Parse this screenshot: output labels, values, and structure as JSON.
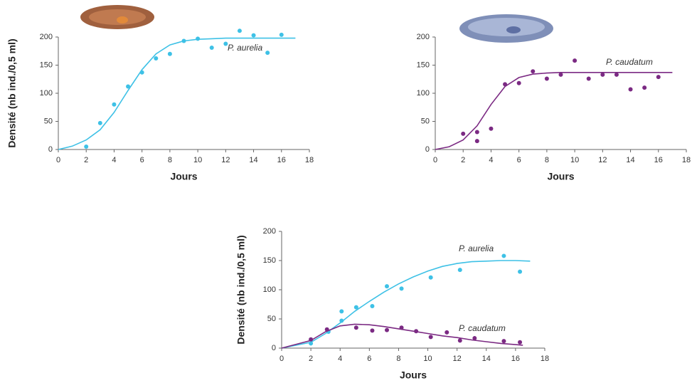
{
  "chart_data": [
    {
      "type": "scatter",
      "xlabel": "Jours",
      "ylabel": "Densité (nb ind./0,5 ml)",
      "xlim": [
        0,
        18
      ],
      "xticks": [
        0,
        2,
        4,
        6,
        8,
        10,
        12,
        14,
        16,
        18
      ],
      "ylim": [
        0,
        200
      ],
      "yticks": [
        0,
        50,
        100,
        150,
        200
      ],
      "series": [
        {
          "name": "P. aurelia",
          "color": "#3ec1e6",
          "x": [
            2,
            3,
            4,
            5,
            6,
            7,
            8,
            9,
            10,
            11,
            12,
            13,
            14,
            15,
            16
          ],
          "values": [
            5,
            47,
            80,
            112,
            137,
            162,
            170,
            193,
            197,
            181,
            188,
            211,
            203,
            172,
            204
          ],
          "fit_x": [
            0,
            1,
            2,
            3,
            4,
            5,
            6,
            7,
            8,
            9,
            10,
            11,
            12,
            13,
            14,
            15,
            16,
            17
          ],
          "fit_values": [
            0,
            6,
            17,
            35,
            66,
            105,
            142,
            170,
            186,
            193,
            196,
            197,
            198,
            198,
            198,
            198,
            198,
            198
          ]
        }
      ]
    },
    {
      "type": "scatter",
      "xlabel": "Jours",
      "xlim": [
        0,
        18
      ],
      "xticks": [
        0,
        2,
        4,
        6,
        8,
        10,
        12,
        14,
        16,
        18
      ],
      "ylim": [
        0,
        200
      ],
      "yticks": [
        0,
        50,
        100,
        150,
        200
      ],
      "series": [
        {
          "name": "P. caudatum",
          "color": "#7b2a83",
          "x": [
            2,
            3,
            3,
            4,
            5,
            6,
            7,
            8,
            9,
            10,
            11,
            12,
            13,
            14,
            15,
            16
          ],
          "values": [
            28,
            15,
            31,
            37,
            116,
            118,
            139,
            126,
            133,
            158,
            126,
            133,
            133,
            107,
            110,
            129
          ],
          "fit_x": [
            0,
            1,
            2,
            3,
            4,
            5,
            6,
            7,
            8,
            9,
            10,
            11,
            12,
            13,
            14,
            15,
            16,
            17
          ],
          "fit_values": [
            0,
            5,
            17,
            42,
            80,
            112,
            128,
            134,
            136,
            137,
            137,
            137,
            137,
            137,
            137,
            137,
            137,
            137
          ]
        }
      ]
    },
    {
      "type": "scatter",
      "xlabel": "Jours",
      "ylabel": "Densité (nb ind./0,5 ml)",
      "xlim": [
        0,
        18
      ],
      "xticks": [
        0,
        2,
        4,
        6,
        8,
        10,
        12,
        14,
        16,
        18
      ],
      "ylim": [
        0,
        200
      ],
      "yticks": [
        0,
        50,
        100,
        150,
        200
      ],
      "series": [
        {
          "name": "P. aurelia",
          "color": "#3ec1e6",
          "x": [
            2,
            3.2,
            4.1,
            4.1,
            5.1,
            6.2,
            7.2,
            8.2,
            10.2,
            12.2,
            15.2,
            16.3
          ],
          "values": [
            8,
            28,
            47,
            63,
            70,
            72,
            106,
            102,
            121,
            134,
            158,
            131
          ],
          "fit_x": [
            0,
            2,
            3,
            4,
            5,
            6,
            7,
            8,
            9,
            10,
            11,
            12,
            13,
            14,
            15,
            16,
            17
          ],
          "fit_values": [
            0,
            10,
            25,
            43,
            63,
            80,
            96,
            110,
            122,
            132,
            140,
            145,
            148,
            149,
            150,
            150,
            149
          ]
        },
        {
          "name": "P. caudatum",
          "color": "#7b2a83",
          "x": [
            2,
            3.1,
            5.1,
            6.2,
            7.2,
            8.2,
            9.2,
            10.2,
            11.3,
            12.2,
            13.2,
            15.2,
            16.3
          ],
          "values": [
            15,
            32,
            35,
            30,
            31,
            35,
            29,
            19,
            27,
            13,
            17,
            12,
            10
          ],
          "fit_x": [
            0,
            2,
            3,
            4,
            5,
            6,
            7,
            8,
            9,
            10,
            11,
            12,
            13,
            14,
            15,
            16,
            16.5
          ],
          "fit_values": [
            0,
            13,
            28,
            38,
            41,
            40,
            37,
            33,
            29,
            25,
            21,
            18,
            14,
            11,
            8,
            6,
            5
          ]
        }
      ]
    }
  ]
}
